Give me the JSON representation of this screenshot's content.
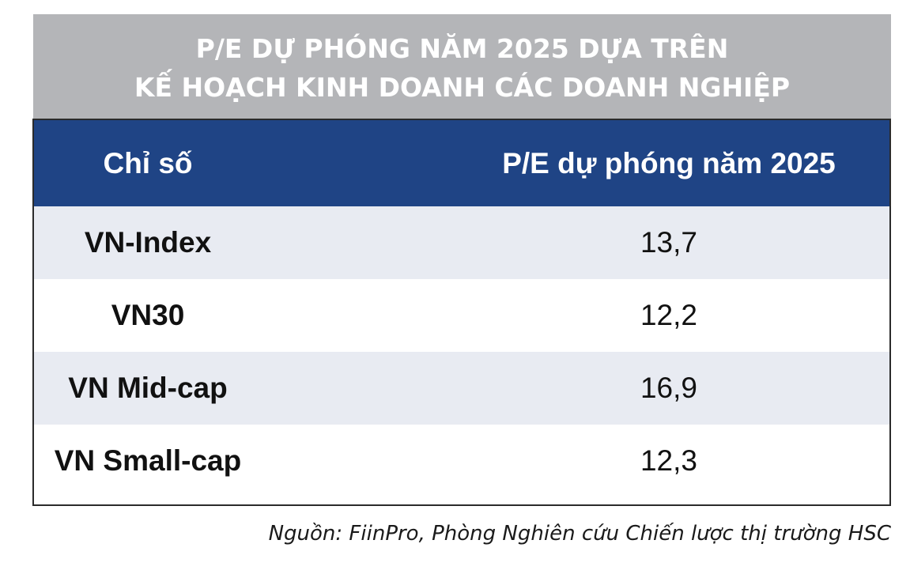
{
  "title": {
    "line1": "P/E DỰ PHÓNG NĂM 2025 DỰA TRÊN",
    "line2": "KẾ HOẠCH KINH DOANH CÁC DOANH NGHIỆP"
  },
  "colors": {
    "title_background": "#b4b5b8",
    "header_background": "#1f4485",
    "row_stripe": "#e8ebf2",
    "row_plain": "#ffffff"
  },
  "chart_data": {
    "type": "table",
    "title": "P/E DỰ PHÓNG NĂM 2025 DỰA TRÊN KẾ HOẠCH KINH DOANH CÁC DOANH NGHIỆP",
    "columns": [
      "Chỉ số",
      "P/E dự phóng năm 2025"
    ],
    "rows": [
      {
        "name": "VN-Index",
        "value": "13,7"
      },
      {
        "name": "VN30",
        "value": "12,2"
      },
      {
        "name": "VN Mid-cap",
        "value": "16,9"
      },
      {
        "name": "VN Small-cap",
        "value": "12,3"
      }
    ]
  },
  "source": "Nguồn: FiinPro, Phòng Nghiên cứu Chiến lược thị trường HSC"
}
